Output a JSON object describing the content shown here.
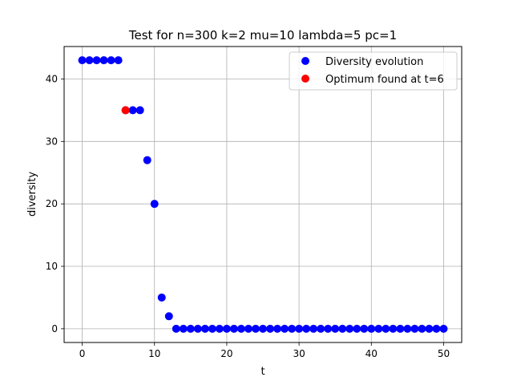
{
  "chart_data": {
    "type": "scatter",
    "title": "Test for n=300 k=2 mu=10 lambda=5 pc=1",
    "xlabel": "t",
    "ylabel": "diversity",
    "xlim": [
      -2.5,
      52.5
    ],
    "ylim": [
      -2.2,
      45.2
    ],
    "xticks": [
      0,
      10,
      20,
      30,
      40,
      50
    ],
    "yticks": [
      0,
      10,
      20,
      30,
      40
    ],
    "grid": true,
    "legend_position": "top-right",
    "series": [
      {
        "name": "Diversity evolution",
        "color": "#0000ff",
        "x": [
          0,
          1,
          2,
          3,
          4,
          5,
          6,
          7,
          8,
          9,
          10,
          11,
          12,
          13,
          14,
          15,
          16,
          17,
          18,
          19,
          20,
          21,
          22,
          23,
          24,
          25,
          26,
          27,
          28,
          29,
          30,
          31,
          32,
          33,
          34,
          35,
          36,
          37,
          38,
          39,
          40,
          41,
          42,
          43,
          44,
          45,
          46,
          47,
          48,
          49,
          50
        ],
        "y": [
          43,
          43,
          43,
          43,
          43,
          43,
          35,
          35,
          35,
          27,
          20,
          5,
          2,
          0,
          0,
          0,
          0,
          0,
          0,
          0,
          0,
          0,
          0,
          0,
          0,
          0,
          0,
          0,
          0,
          0,
          0,
          0,
          0,
          0,
          0,
          0,
          0,
          0,
          0,
          0,
          0,
          0,
          0,
          0,
          0,
          0,
          0,
          0,
          0,
          0,
          0
        ]
      },
      {
        "name": "Optimum found at t=6",
        "color": "#ff0000",
        "x": [
          6
        ],
        "y": [
          35
        ]
      }
    ]
  }
}
